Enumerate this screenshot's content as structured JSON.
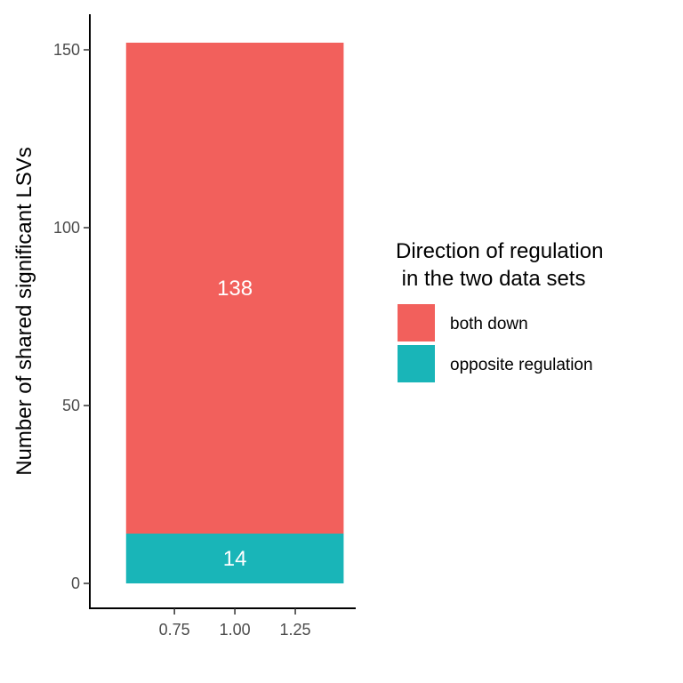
{
  "chart_data": {
    "type": "bar",
    "stacked": true,
    "x": [
      1.0
    ],
    "series": [
      {
        "name": "opposite regulation",
        "values": [
          14
        ],
        "color": "#19B5B8"
      },
      {
        "name": "both down",
        "values": [
          138
        ],
        "color": "#F2605C"
      }
    ],
    "data_labels": [
      "14",
      "138"
    ],
    "ylabel": "Number of shared significant LSVs",
    "xlabel": "",
    "xlim": [
      0.4,
      1.5
    ],
    "ylim": [
      -7,
      160
    ],
    "x_ticks": [
      0.75,
      1.0,
      1.25
    ],
    "x_tick_labels": [
      "0.75",
      "1.00",
      "1.25"
    ],
    "y_ticks": [
      0,
      50,
      100,
      150
    ],
    "y_tick_labels": [
      "0",
      "50",
      "100",
      "150"
    ],
    "bar_width": 0.9,
    "grid": false,
    "legend": {
      "title_line1": "Direction of regulation",
      "title_line2": " in the two data sets",
      "placement": "right",
      "items": [
        {
          "label": "both down",
          "color": "#F2605C"
        },
        {
          "label": "opposite regulation",
          "color": "#19B5B8"
        }
      ]
    }
  }
}
